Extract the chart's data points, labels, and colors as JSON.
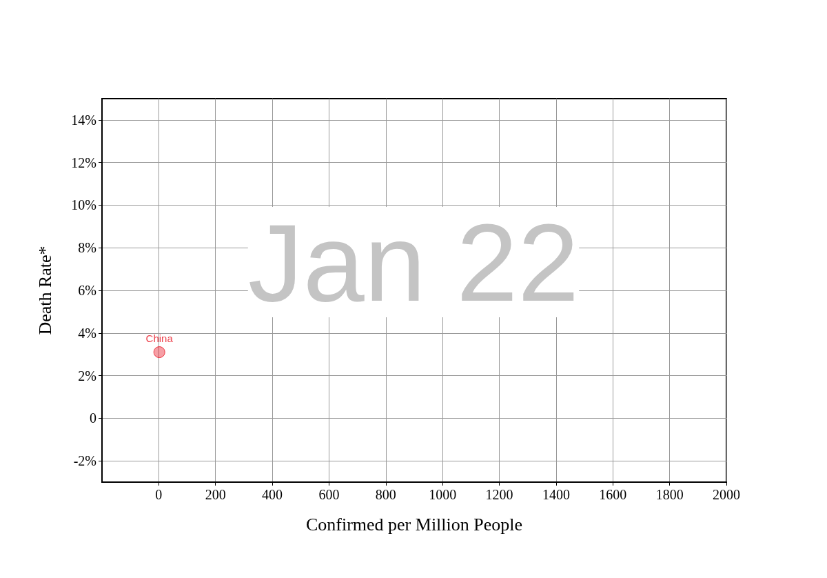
{
  "chart_data": {
    "type": "scatter",
    "xlabel": "Confirmed per Million People",
    "ylabel": "Death Rate*",
    "annotations": [
      "Jan 22"
    ],
    "series": [
      {
        "name": "China",
        "color": "#e8101e",
        "x": [
          2
        ],
        "values": [
          3.1
        ]
      }
    ],
    "xlim": [
      -200,
      2000
    ],
    "xticks": [
      0,
      200,
      400,
      600,
      800,
      1000,
      1200,
      1400,
      1600,
      1800,
      2000
    ],
    "ylim": [
      -3,
      15
    ],
    "yticks": [
      {
        "value": -2,
        "label": "-2%"
      },
      0,
      {
        "value": 2,
        "label": "2%"
      },
      {
        "value": 4,
        "label": "4%"
      },
      {
        "value": 6,
        "label": "6%"
      },
      {
        "value": 8,
        "label": "8%"
      },
      {
        "value": 10,
        "label": "10%"
      },
      {
        "value": 12,
        "label": "12%"
      },
      {
        "value": 14,
        "label": "14%"
      }
    ],
    "grid": true,
    "legend": false,
    "marker": "circle"
  }
}
